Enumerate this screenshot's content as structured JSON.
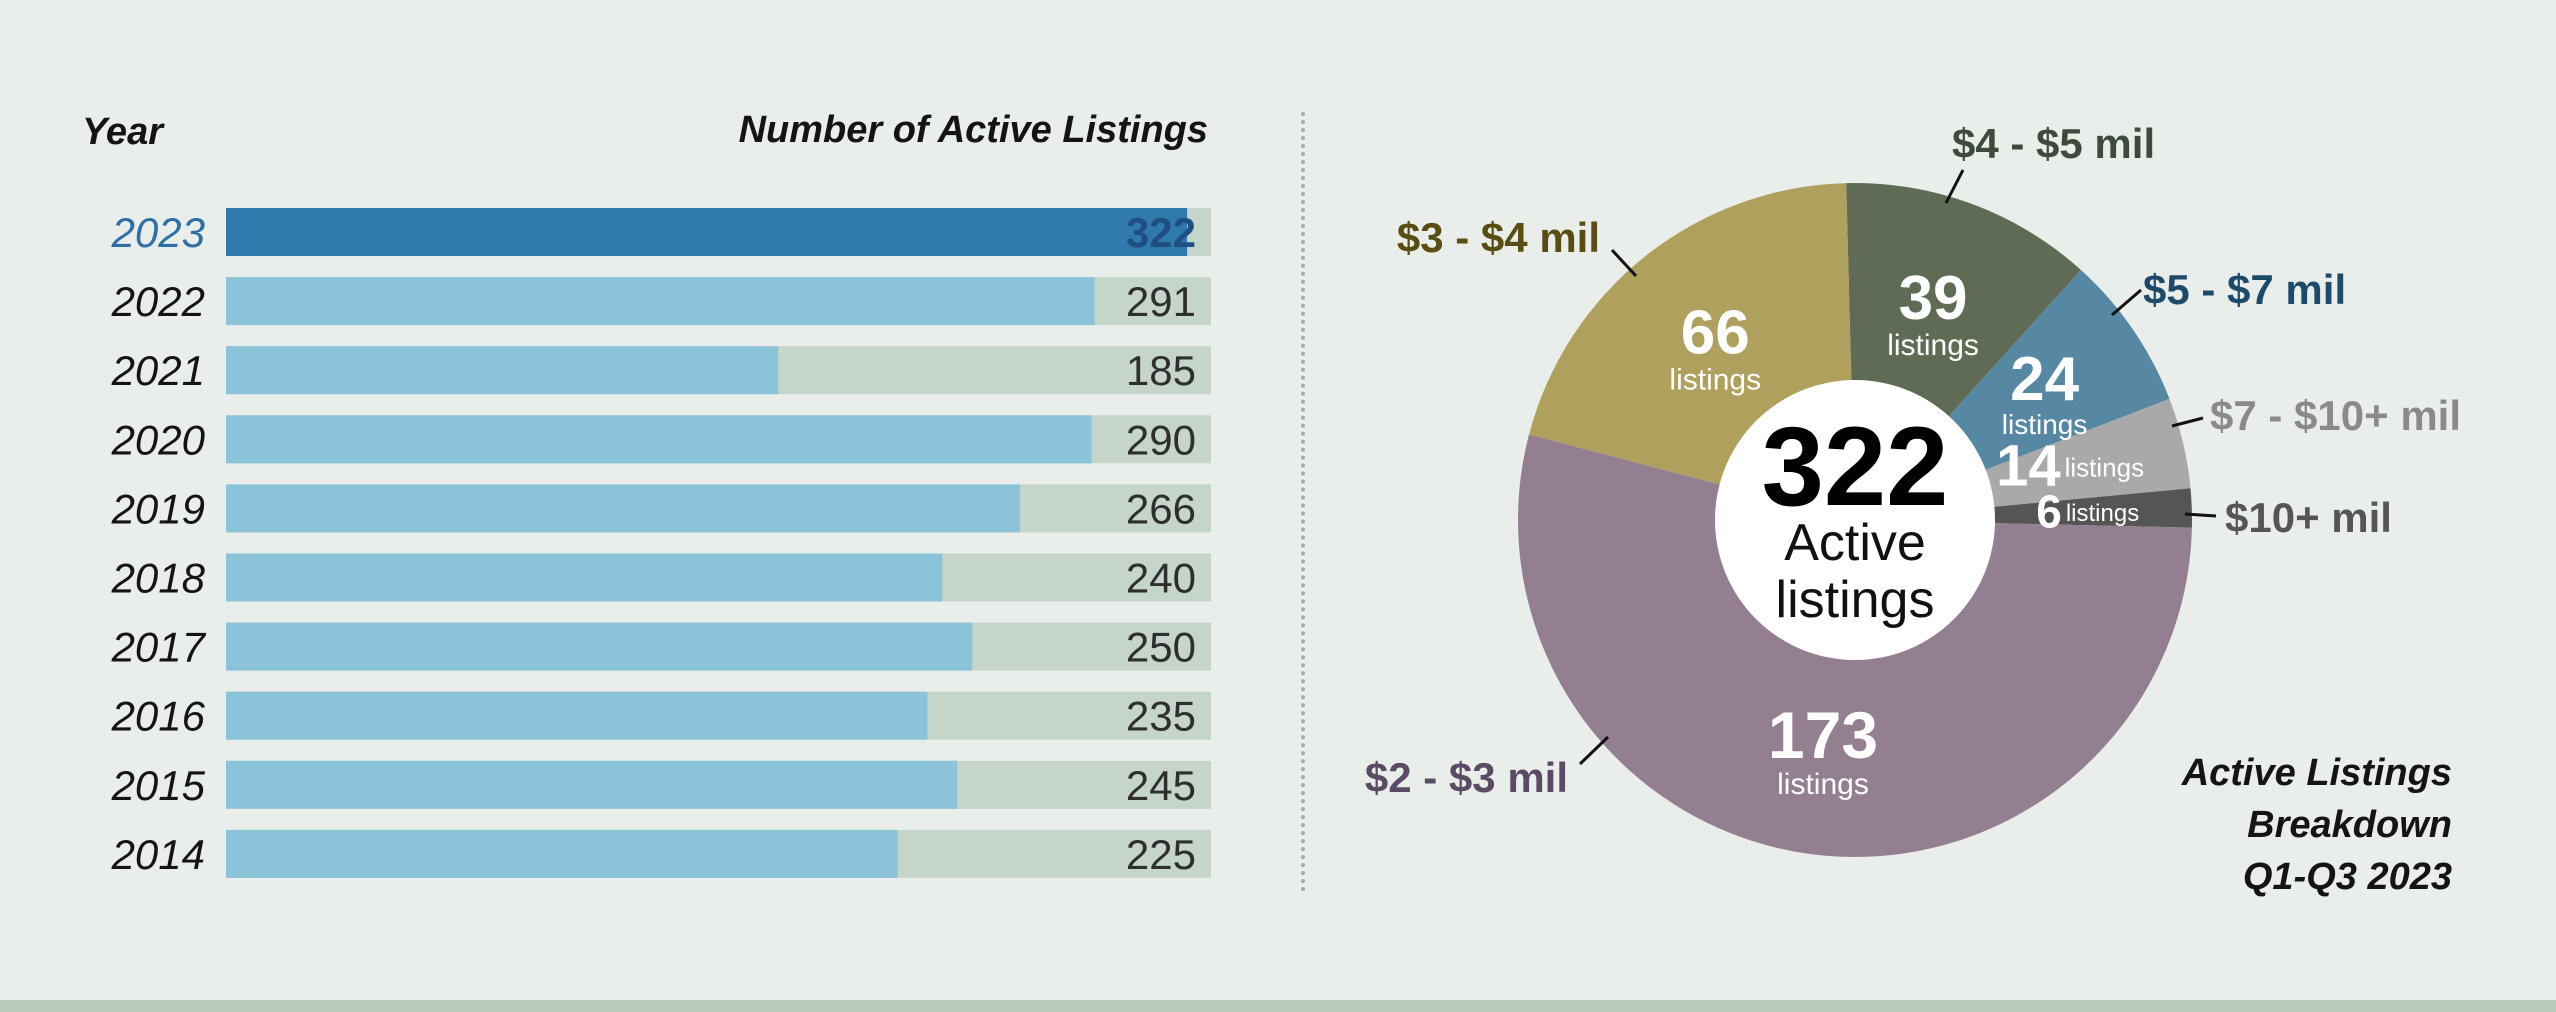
{
  "bar_chart": {
    "year_header": "Year",
    "value_header": "Number of Active Listings"
  },
  "pie_chart": {
    "center_value": "322",
    "center_label_1": "Active",
    "center_label_2": "listings",
    "title_lines": [
      "Active Listings",
      "Breakdown",
      "Q1-Q3 2023"
    ]
  },
  "colors": {
    "highlight_bar": "#3079ad",
    "bar": "#8bc3d9",
    "track": "#c6d5ca",
    "highlight_text": "#2e6fa6",
    "highlight_value": "#1f4f80"
  },
  "chart_data": [
    {
      "type": "bar",
      "orientation": "horizontal",
      "xlabel": "Number of Active Listings",
      "ylabel": "Year",
      "xlim": [
        0,
        330
      ],
      "categories": [
        "2023",
        "2022",
        "2021",
        "2020",
        "2019",
        "2018",
        "2017",
        "2016",
        "2015",
        "2014"
      ],
      "values": [
        322,
        291,
        185,
        290,
        266,
        240,
        250,
        235,
        245,
        225
      ],
      "highlight": "2023"
    },
    {
      "type": "pie",
      "title": "Active Listings Breakdown Q1-Q3 2023",
      "total": 322,
      "unit_label": "listings",
      "slices": [
        {
          "label": "$4 - $5 mil",
          "value": 39,
          "color": "#5f6b55",
          "label_color": "#3f4a3c"
        },
        {
          "label": "$5 - $7 mil",
          "value": 24,
          "color": "#5687a3",
          "label_color": "#1e4a6a"
        },
        {
          "label": "$7 - $10+ mil",
          "value": 14,
          "color": "#a9a9a9",
          "label_color": "#8a8a8a"
        },
        {
          "label": "$10+ mil",
          "value": 6,
          "color": "#555555",
          "label_color": "#555555"
        },
        {
          "label": "$2 - $3 mil",
          "value": 173,
          "color": "#947f91",
          "label_color": "#5a4a63"
        },
        {
          "label": "$3 - $4 mil",
          "value": 66,
          "color": "#b0a05d",
          "label_color": "#5a4d12"
        }
      ]
    }
  ]
}
